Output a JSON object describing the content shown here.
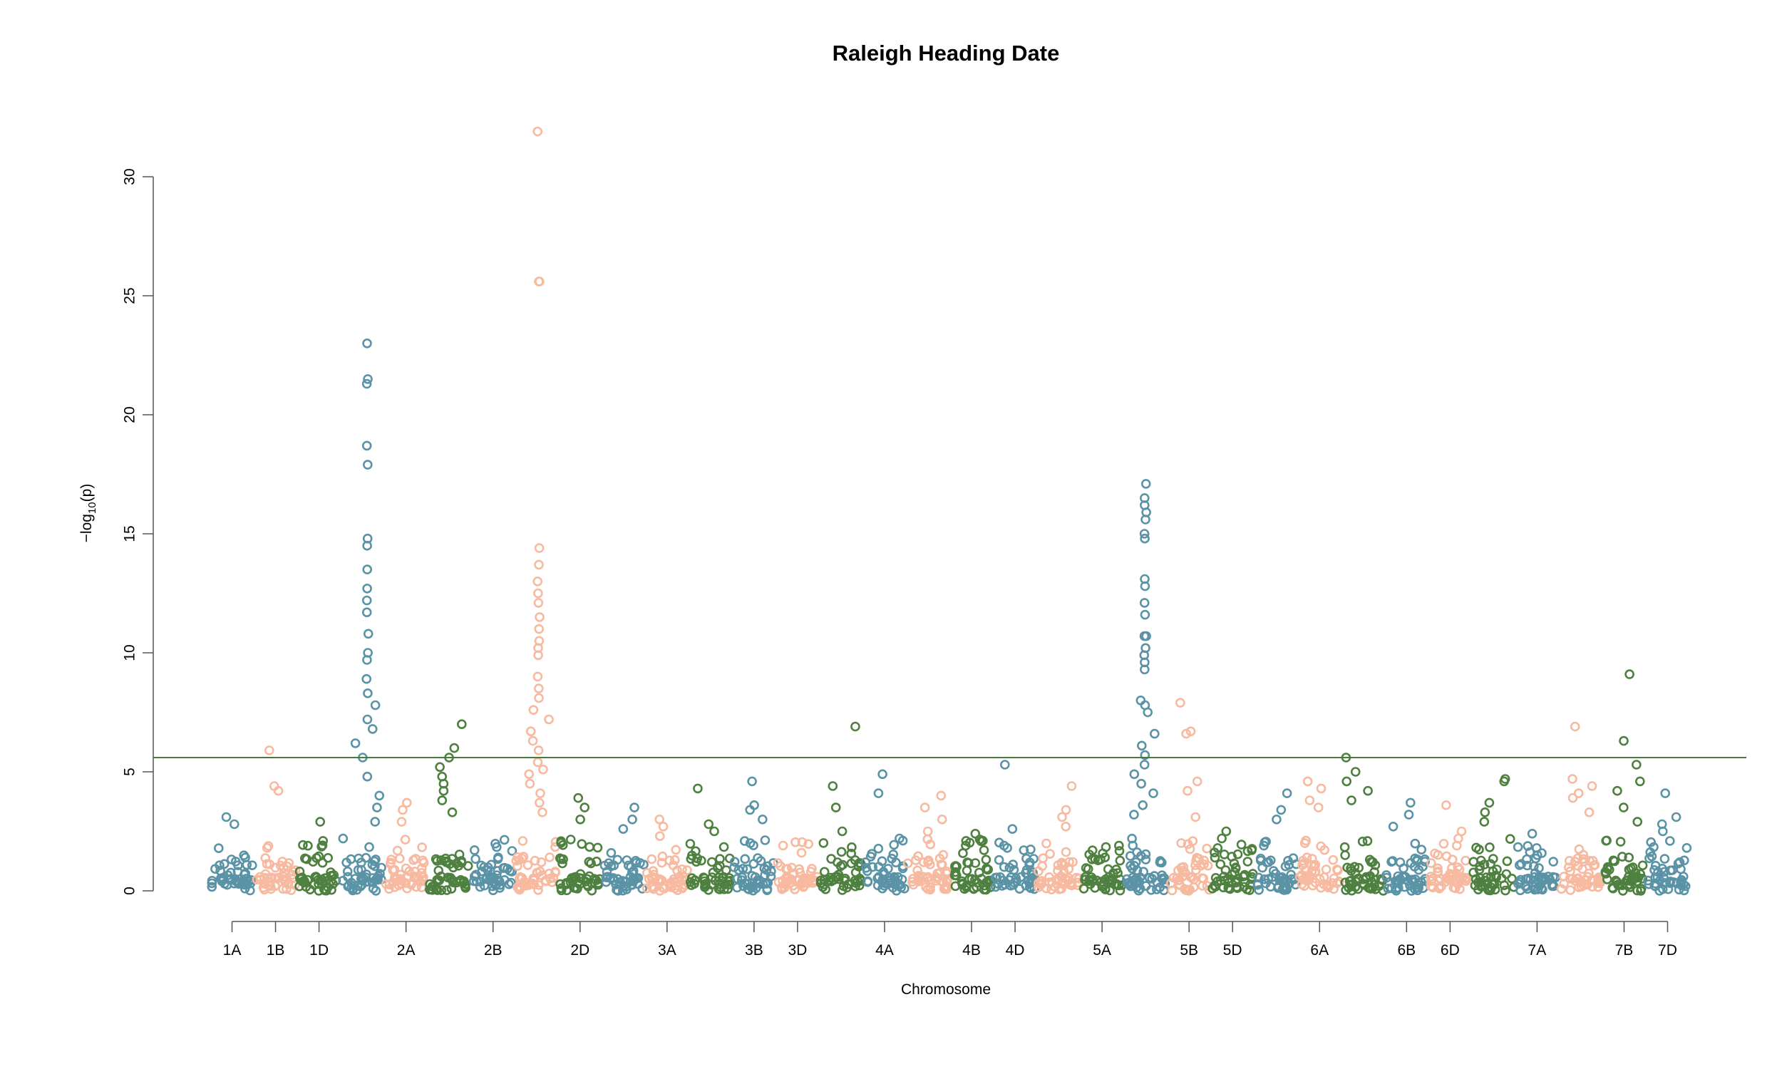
{
  "chart_data": {
    "type": "scatter",
    "title": "Raleigh Heading Date",
    "xlabel": "Chromosome",
    "ylabel_main": "−log",
    "ylabel_sub": "10",
    "ylabel_tail": "(p)",
    "ylim": [
      0,
      32
    ],
    "yticks": [
      0,
      5,
      10,
      15,
      20,
      25,
      30
    ],
    "threshold": 5.6,
    "threshold_color": "#4a7a3a",
    "colors": [
      "#5b93a6",
      "#f7b9a0",
      "#4e8040"
    ],
    "grid": false,
    "legend": "none",
    "labeled_chromosomes": [
      "1A",
      "1B",
      "1D",
      "2A",
      "2B",
      "2D",
      "3A",
      "3B",
      "3D",
      "4A",
      "4B",
      "4D",
      "5A",
      "5B",
      "5D",
      "6A",
      "6B",
      "6D",
      "7A",
      "7B",
      "7D"
    ],
    "chromosomes": [
      {
        "name": "1A",
        "peaks": [
          2.8,
          3.1
        ]
      },
      {
        "name": "1B",
        "peaks": [
          4.2,
          5.9,
          4.4
        ]
      },
      {
        "name": "1D",
        "peaks": [
          2.9,
          2.1
        ]
      },
      {
        "name": "",
        "peaks": [
          23.0,
          21.5,
          21.3,
          18.7,
          17.9,
          14.8,
          14.5,
          13.5,
          12.7,
          12.2,
          11.7,
          10.8,
          10.0,
          9.7,
          8.9,
          8.3,
          7.8,
          7.2,
          6.8,
          6.2,
          5.6,
          4.8,
          4.0,
          3.5,
          2.9
        ]
      },
      {
        "name": "2A",
        "peaks": [
          3.7,
          3.4,
          2.9
        ]
      },
      {
        "name": "",
        "peaks": [
          7.0,
          6.0,
          5.6,
          5.2,
          4.8,
          4.5,
          4.2,
          3.8,
          3.3
        ]
      },
      {
        "name": "2B",
        "peaks": [
          1.4,
          1.1
        ]
      },
      {
        "name": "",
        "peaks": [
          31.9,
          25.6,
          25.6,
          14.4,
          13.7,
          13.0,
          12.5,
          12.1,
          11.5,
          11.0,
          10.5,
          10.2,
          9.9,
          9.0,
          8.5,
          8.1,
          7.6,
          7.2,
          6.7,
          6.3,
          5.9,
          5.4,
          5.1,
          4.9,
          4.5,
          4.1,
          3.7,
          3.3
        ]
      },
      {
        "name": "2D",
        "peaks": [
          3.9,
          3.5,
          3.0
        ]
      },
      {
        "name": "",
        "peaks": [
          3.5,
          3.0,
          2.6
        ]
      },
      {
        "name": "3A",
        "peaks": [
          3.0,
          2.7,
          2.3
        ]
      },
      {
        "name": "",
        "peaks": [
          4.3,
          2.8,
          2.5
        ]
      },
      {
        "name": "3B",
        "peaks": [
          4.6,
          3.6,
          3.4,
          3.0
        ]
      },
      {
        "name": "3D",
        "peaks": [
          1.9,
          1.6
        ]
      },
      {
        "name": "",
        "peaks": [
          6.9,
          4.4,
          3.5,
          2.5
        ]
      },
      {
        "name": "4A",
        "peaks": [
          4.9,
          4.1,
          2.2
        ]
      },
      {
        "name": "",
        "peaks": [
          4.0,
          3.5,
          3.0,
          2.5
        ]
      },
      {
        "name": "4B",
        "peaks": [
          2.4,
          2.1,
          1.9
        ]
      },
      {
        "name": "4D",
        "peaks": [
          5.3,
          2.6,
          1.9
        ]
      },
      {
        "name": "",
        "peaks": [
          4.4,
          3.4,
          3.1,
          2.7
        ]
      },
      {
        "name": "5A",
        "peaks": [
          1.7,
          1.4
        ]
      },
      {
        "name": "",
        "peaks": [
          17.1,
          16.5,
          16.2,
          15.9,
          15.6,
          15.0,
          14.8,
          13.1,
          12.8,
          12.1,
          11.6,
          10.7,
          10.7,
          10.2,
          9.9,
          9.6,
          9.3,
          8.0,
          7.8,
          7.5,
          6.6,
          6.1,
          5.7,
          5.3,
          4.9,
          4.5,
          4.1,
          3.6,
          3.2
        ]
      },
      {
        "name": "5B",
        "peaks": [
          7.9,
          6.7,
          6.6,
          4.6,
          4.2,
          3.1
        ]
      },
      {
        "name": "5D",
        "peaks": [
          2.5,
          2.2,
          1.8
        ]
      },
      {
        "name": "",
        "peaks": [
          4.1,
          3.4,
          3.0
        ]
      },
      {
        "name": "6A",
        "peaks": [
          4.6,
          4.3,
          3.8,
          3.5
        ]
      },
      {
        "name": "",
        "peaks": [
          5.6,
          5.0,
          4.6,
          4.2,
          3.8
        ]
      },
      {
        "name": "6B",
        "peaks": [
          3.7,
          3.2,
          2.7
        ]
      },
      {
        "name": "6D",
        "peaks": [
          3.6,
          2.5,
          1.9
        ]
      },
      {
        "name": "",
        "peaks": [
          4.7,
          4.6,
          3.7,
          3.3,
          2.9
        ]
      },
      {
        "name": "7A",
        "peaks": [
          2.4,
          1.8,
          1.5
        ]
      },
      {
        "name": "",
        "peaks": [
          6.9,
          4.7,
          4.4,
          4.1,
          3.9,
          3.3
        ]
      },
      {
        "name": "7B",
        "peaks": [
          9.1,
          6.3,
          5.3,
          4.6,
          4.2,
          3.5,
          2.9
        ]
      },
      {
        "name": "7D",
        "peaks": [
          4.1,
          3.1,
          2.8,
          2.5
        ]
      }
    ]
  }
}
